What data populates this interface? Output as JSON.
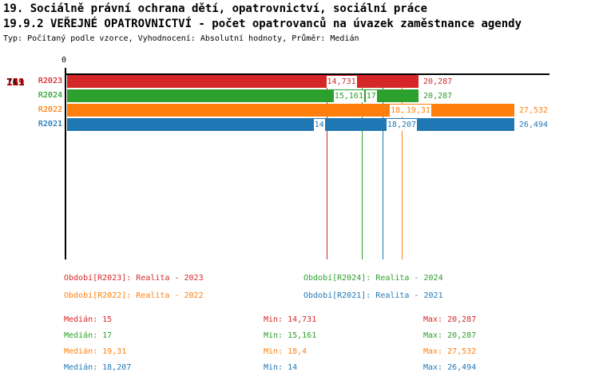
{
  "header": {
    "line1": "19. Sociálně právní ochrana dětí, opatrovnictví, sociální práce",
    "line2": "19.9.2 VEŘEJNÉ OPATROVNICTVÍ - počet opatrovanců na úvazek zaměstnance agendy",
    "line3": "Typ: Počítaný podle vzorce, Vyhodnocení: Absolutní hodnoty, Průměr: Medián"
  },
  "colors": {
    "r2023": "#d62728",
    "r2024": "#2ca02c",
    "r2022": "#ff7f0e",
    "r2021": "#1f77b4",
    "highlight_group": "#cc0000",
    "axis": "#000000"
  },
  "chart_data": {
    "type": "bar",
    "orientation": "horizontal",
    "title": "19.9.2 VEŘEJNÉ OPATROVNICTVÍ - počet opatrovanců na úvazek zaměstnance agendy",
    "xlabel": "",
    "ylabel": "",
    "axis": {
      "zero_label": "0",
      "max": 27.8,
      "grid": false
    },
    "series_order": [
      "R2023",
      "R2024",
      "R2022",
      "R2021"
    ],
    "groups": [
      {
        "label": "76",
        "label_color": "#000000",
        "bars": [
          {
            "series": "R2023",
            "value": 15,
            "value_label": "15",
            "color": "#d62728"
          },
          {
            "series": "R2024",
            "value": 17,
            "value_label": "17",
            "color": "#2ca02c"
          },
          {
            "series": "R2022",
            "value": 18.4,
            "value_label": "18,4",
            "color": "#ff7f0e"
          },
          {
            "series": "R2021",
            "value": 14,
            "value_label": "14",
            "color": "#1f77b4"
          }
        ]
      },
      {
        "label": "111",
        "label_color": "#000000",
        "bars": [
          {
            "series": "R2023",
            "value": 20.287,
            "value_label": "20,287",
            "color": "#d62728"
          },
          {
            "series": "R2024",
            "value": 20.287,
            "value_label": "20,287",
            "color": "#2ca02c"
          },
          {
            "series": "R2022",
            "value": 27.532,
            "value_label": "27,532",
            "color": "#ff7f0e"
          },
          {
            "series": "R2021",
            "value": 26.494,
            "value_label": "26,494",
            "color": "#1f77b4"
          }
        ]
      },
      {
        "label": "139",
        "label_color": "#cc0000",
        "bars": [
          {
            "series": "R2023",
            "value": 14.731,
            "value_label": "14,731",
            "color": "#d62728"
          },
          {
            "series": "R2024",
            "value": 15.161,
            "value_label": "15,161",
            "color": "#2ca02c"
          },
          {
            "series": "R2022",
            "value": 19.31,
            "value_label": "19,31",
            "color": "#ff7f0e"
          },
          {
            "series": "R2021",
            "value": 18.207,
            "value_label": "18,207",
            "color": "#1f77b4"
          }
        ]
      }
    ],
    "median_lines": [
      {
        "series": "R2023",
        "value": 15,
        "color": "#d62728"
      },
      {
        "series": "R2024",
        "value": 17,
        "color": "#2ca02c"
      },
      {
        "series": "R2021",
        "value": 18.207,
        "color": "#1f77b4"
      },
      {
        "series": "R2022",
        "value": 19.31,
        "color": "#ff7f0e"
      }
    ]
  },
  "legend": [
    {
      "label": "Období[R2023]: Realita - 2023",
      "color": "#d62728"
    },
    {
      "label": "Období[R2024]: Realita - 2024",
      "color": "#2ca02c"
    },
    {
      "label": "Období[R2022]: Realita - 2022",
      "color": "#ff7f0e"
    },
    {
      "label": "Období[R2021]: Realita - 2021",
      "color": "#1f77b4"
    }
  ],
  "stats": [
    {
      "median": "Medián: 15",
      "min": "Min: 14,731",
      "max": "Max: 20,287",
      "color": "#d62728"
    },
    {
      "median": "Medián: 17",
      "min": "Min: 15,161",
      "max": "Max: 20,287",
      "color": "#2ca02c"
    },
    {
      "median": "Medián: 19,31",
      "min": "Min: 18,4",
      "max": "Max: 27,532",
      "color": "#ff7f0e"
    },
    {
      "median": "Medián: 18,207",
      "min": "Min: 14",
      "max": "Max: 26,494",
      "color": "#1f77b4"
    }
  ]
}
